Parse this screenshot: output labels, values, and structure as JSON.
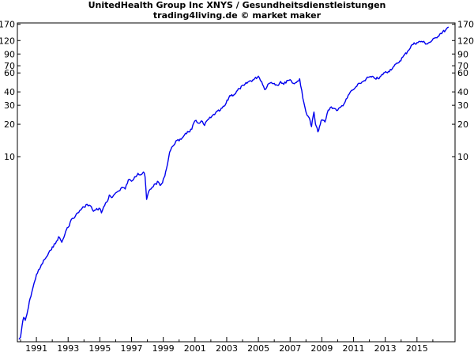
{
  "chart_data": {
    "type": "line",
    "title": "UnitedHealth Group Inc XNYS / Gesundheitsdienstleistungen",
    "subtitle": "trading4living.de © market maker",
    "xlabel": "",
    "ylabel": "",
    "y_scale": "log",
    "ylim": [
      0.19,
      175
    ],
    "xlim": [
      1989.8,
      2017.4
    ],
    "grid": false,
    "x_tick_labels": [
      "1991",
      "1993",
      "1995",
      "1997",
      "1999",
      "2001",
      "2003",
      "2005",
      "2007",
      "2009",
      "2011",
      "2013",
      "2015"
    ],
    "y_tick_labels": [
      "170",
      "120",
      "90",
      "70",
      "60",
      "40",
      "30",
      "20",
      "10"
    ],
    "line_color": "#0000ee",
    "series": [
      {
        "x": [
          1989.9,
          1990.0,
          1990.1,
          1990.2,
          1990.3,
          1990.4,
          1990.5,
          1990.6,
          1990.75,
          1990.9,
          1991.0,
          1991.2,
          1991.35,
          1991.5,
          1991.7,
          1991.9,
          1992.0,
          1992.2,
          1992.4,
          1992.6,
          1992.8,
          1992.9,
          1993.0,
          1993.2,
          1993.4,
          1993.6,
          1993.8,
          1994.0,
          1994.2,
          1994.4,
          1994.6,
          1994.8,
          1994.9,
          1995.0,
          1995.1,
          1995.3,
          1995.5,
          1995.6,
          1995.8,
          1996.0,
          1996.2,
          1996.4,
          1996.6,
          1996.8,
          1997.0,
          1997.2,
          1997.4,
          1997.6,
          1997.75,
          1997.85,
          1997.95,
          1998.1,
          1998.3,
          1998.5,
          1998.7,
          1998.8,
          1998.95,
          1999.05,
          1999.2,
          1999.4,
          1999.6,
          1999.8,
          2000.0,
          2000.2,
          2000.4,
          2000.6,
          2000.8,
          2001.0,
          2001.2,
          2001.4,
          2001.6,
          2001.8,
          2002.0,
          2002.3,
          2002.6,
          2002.9,
          2003.2,
          2003.5,
          2003.8,
          2004.1,
          2004.4,
          2004.7,
          2005.0,
          2005.2,
          2005.4,
          2005.6,
          2005.8,
          2006.0,
          2006.2,
          2006.4,
          2006.6,
          2006.8,
          2007.0,
          2007.2,
          2007.4,
          2007.6,
          2007.8,
          2008.0,
          2008.2,
          2008.35,
          2008.5,
          2008.6,
          2008.75,
          2008.85,
          2009.0,
          2009.2,
          2009.4,
          2009.6,
          2009.8,
          2010.0,
          2010.2,
          2010.4,
          2010.6,
          2010.8,
          2011.0,
          2011.2,
          2011.4,
          2011.6,
          2011.8,
          2012.0,
          2012.3,
          2012.6,
          2012.9,
          2013.2,
          2013.5,
          2013.8,
          2014.1,
          2014.4,
          2014.7,
          2015.0,
          2015.3,
          2015.6,
          2015.9,
          2016.2,
          2016.5,
          2016.8,
          2017.0
        ],
        "values": [
          0.2,
          0.21,
          0.27,
          0.32,
          0.3,
          0.34,
          0.4,
          0.48,
          0.58,
          0.7,
          0.8,
          0.9,
          1.0,
          1.1,
          1.2,
          1.35,
          1.45,
          1.55,
          1.8,
          1.6,
          1.9,
          2.1,
          2.2,
          2.6,
          2.7,
          3.0,
          3.2,
          3.4,
          3.6,
          3.5,
          3.1,
          3.3,
          3.2,
          3.3,
          3.0,
          3.5,
          3.9,
          4.4,
          4.2,
          4.6,
          4.8,
          5.2,
          5.0,
          6.1,
          5.9,
          6.5,
          7.0,
          6.8,
          7.2,
          6.5,
          4.0,
          4.8,
          5.2,
          5.6,
          5.8,
          5.4,
          5.7,
          6.4,
          7.7,
          11.0,
          12.5,
          14.0,
          14.0,
          15.0,
          16.5,
          17.0,
          18.0,
          21.5,
          20.5,
          21.5,
          19.5,
          22.0,
          23.0,
          25.5,
          27.0,
          30.0,
          37.0,
          38.0,
          43.0,
          46.0,
          50.0,
          52.0,
          56.0,
          50.0,
          42.0,
          47.0,
          49.0,
          48.0,
          46.0,
          50.0,
          47.0,
          51.0,
          52.0,
          48.0,
          49.0,
          53.0,
          35.0,
          26.0,
          23.0,
          19.0,
          26.0,
          20.0,
          17.0,
          19.0,
          22.0,
          21.0,
          27.0,
          29.0,
          28.0,
          27.0,
          29.0,
          31.0,
          35.0,
          40.0,
          42.0,
          45.0,
          48.0,
          50.0,
          53.0,
          55.0,
          54.0,
          53.0,
          60.0,
          62.0,
          68.0,
          74.0,
          84.0,
          95.0,
          110.0,
          115.0,
          118.0,
          112.0,
          118.0,
          128.0,
          140.0,
          150.0,
          160.0
        ]
      }
    ]
  }
}
